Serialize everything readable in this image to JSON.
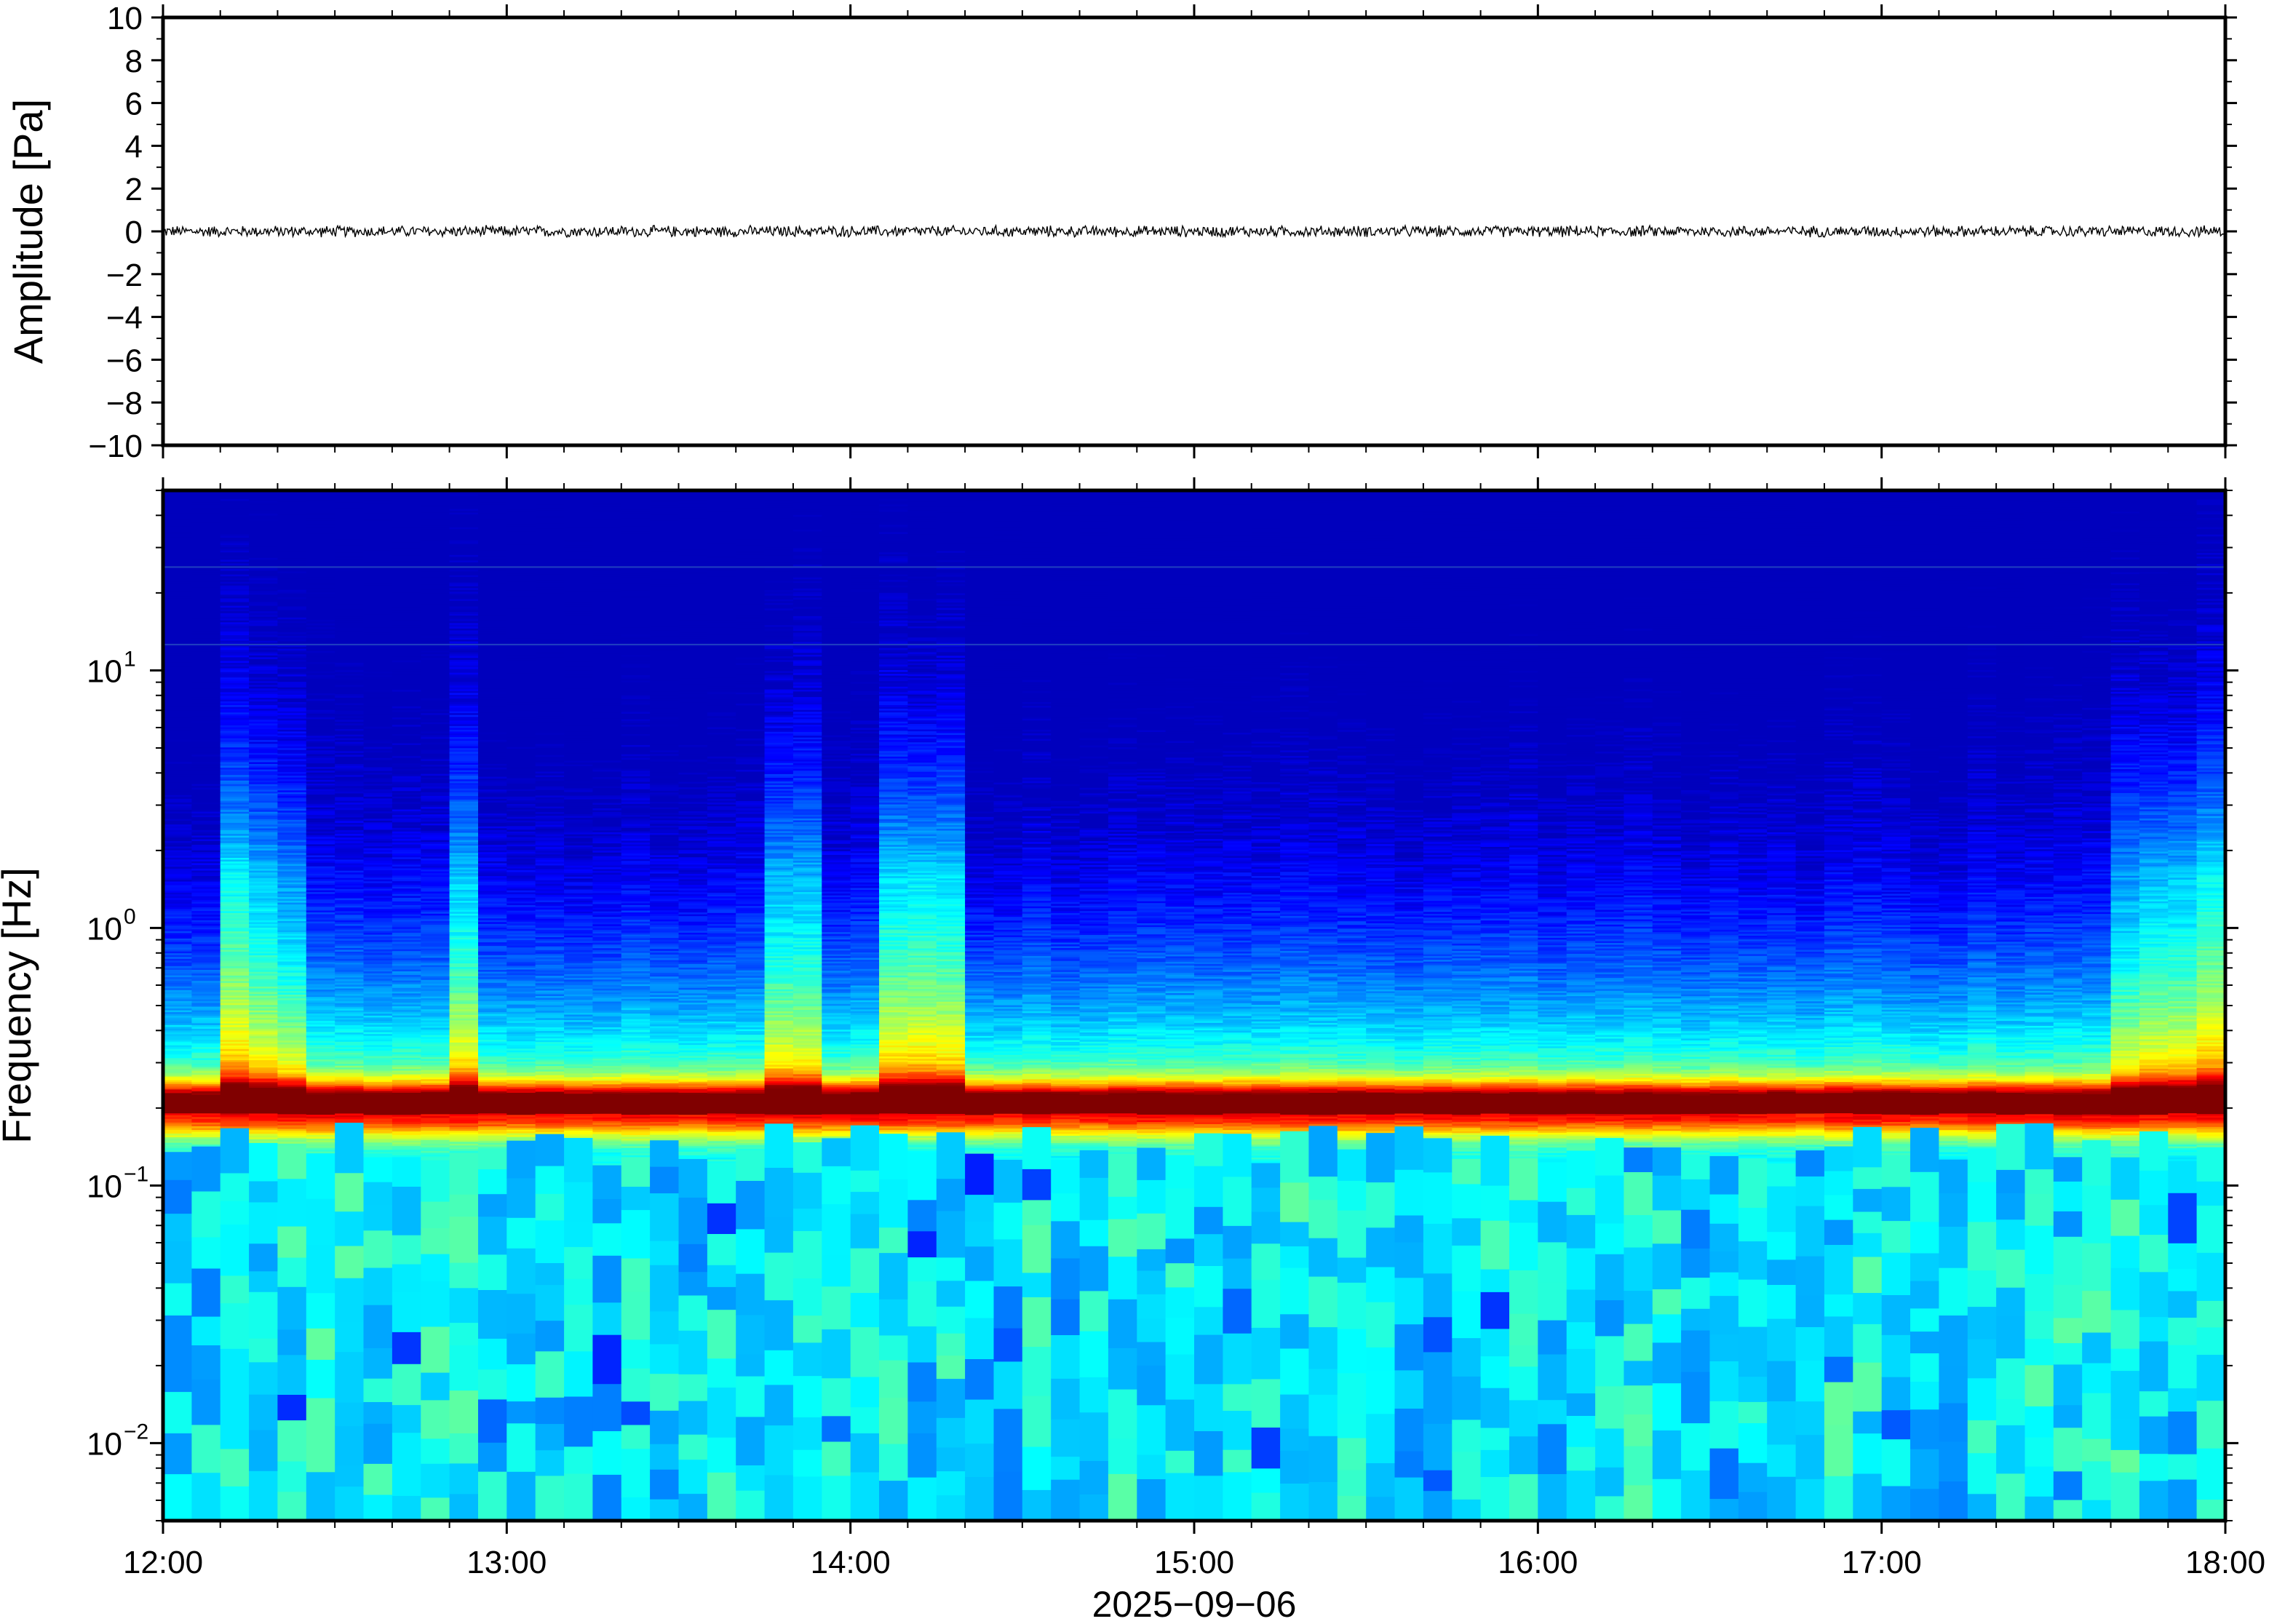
{
  "chart_data": [
    {
      "type": "line",
      "ylabel": "Amplitude [Pa]",
      "ylim": [
        -10,
        10
      ],
      "yticks": [
        10,
        8,
        6,
        4,
        2,
        0,
        -2,
        -4,
        -6,
        -8,
        -10
      ],
      "ytick_labels": [
        "10",
        "8",
        "6",
        "4",
        "2",
        "0",
        "−2",
        "−4",
        "−6",
        "−8",
        "−10"
      ],
      "series": [
        {
          "amplitude_range": [
            -0.3,
            0.3
          ],
          "mean": 0
        }
      ],
      "grid": false
    },
    {
      "type": "heatmap",
      "ylabel": "Frequency [Hz]",
      "yscale": "log",
      "ylim": [
        0.005,
        50
      ],
      "yticks": [
        10,
        1,
        0.1,
        0.01
      ],
      "ytick_labels": [
        {
          "base": "10",
          "exp": "1"
        },
        {
          "base": "10",
          "exp": "0"
        },
        {
          "base": "10",
          "exp": "−1"
        },
        {
          "base": "10",
          "exp": "−2"
        }
      ],
      "xlabel": "2025−09−06",
      "xlim": [
        "12:00",
        "18:00"
      ],
      "xticks": [
        "12:00",
        "13:00",
        "14:00",
        "15:00",
        "16:00",
        "17:00",
        "18:00"
      ],
      "colormap": "jet",
      "peak_frequency_hz": 0.19,
      "background_color_high_freq": "#0a0a6e",
      "peak_color": "#ff7a30",
      "grid": false
    }
  ]
}
